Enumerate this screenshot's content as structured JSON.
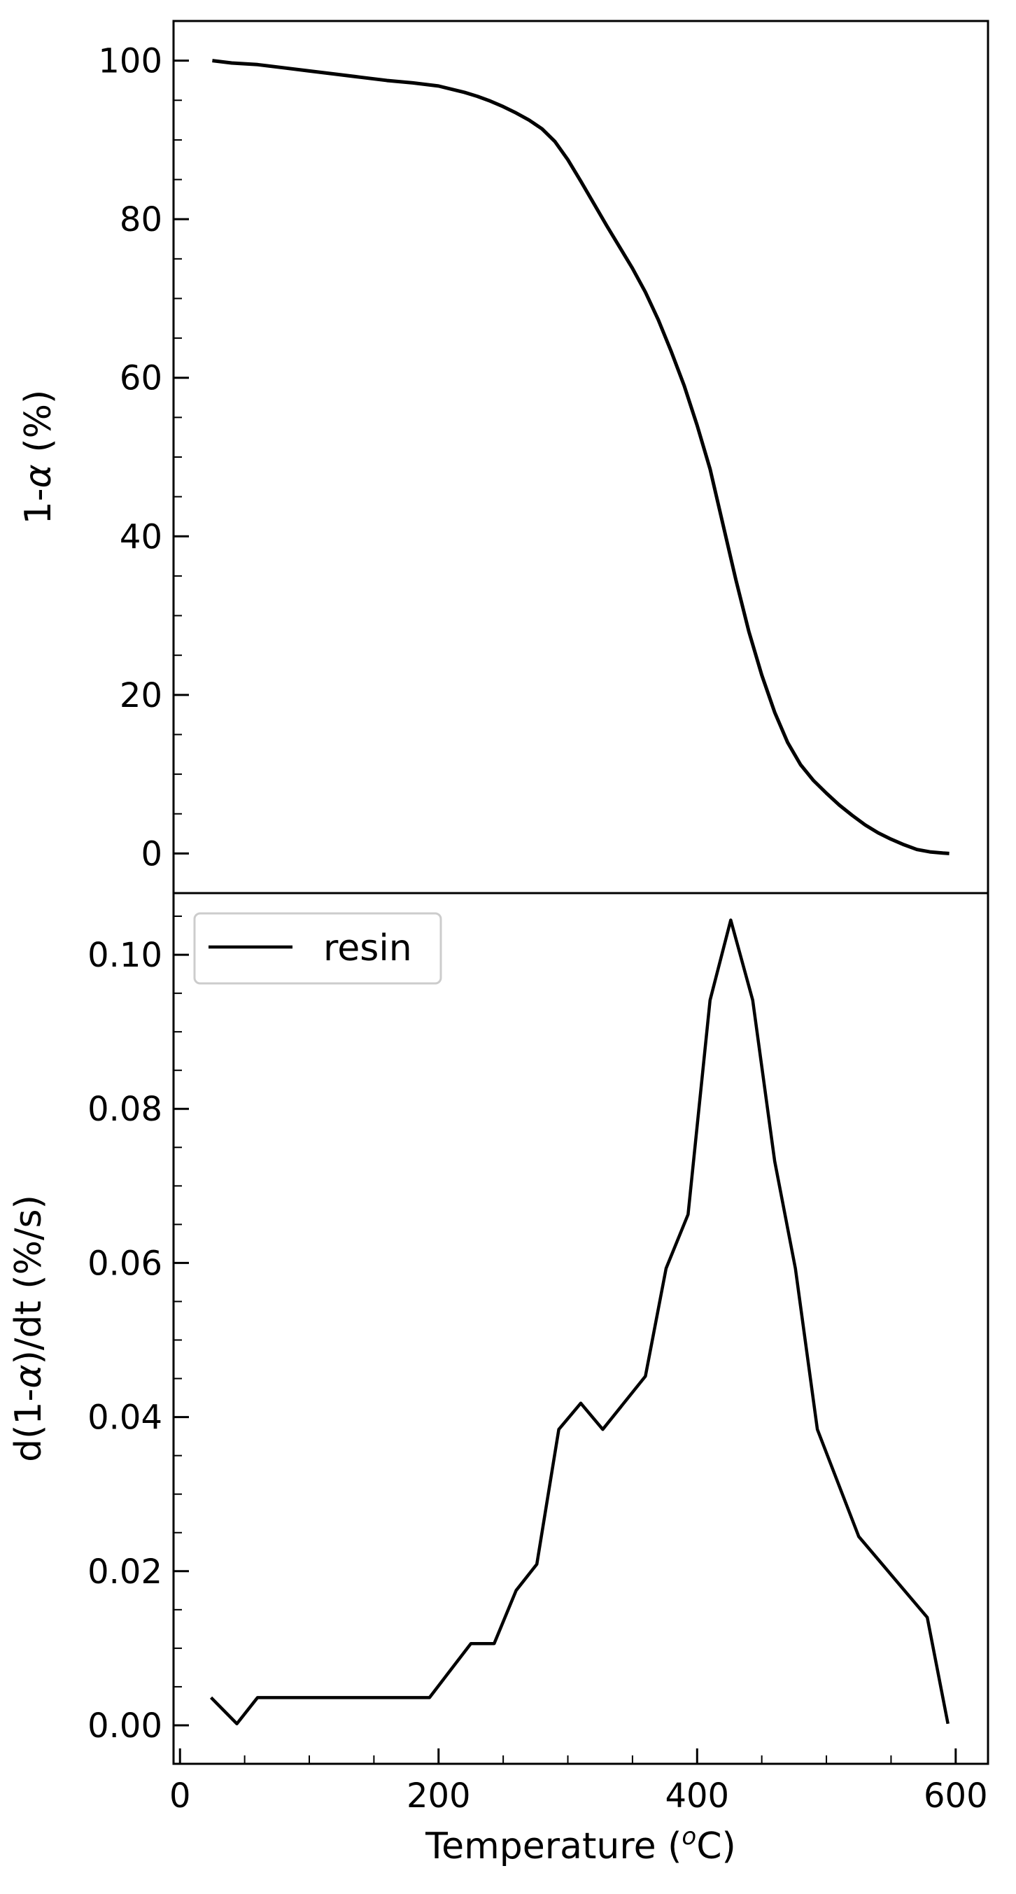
{
  "chart_data": [
    {
      "type": "line",
      "title": "",
      "xlabel": "",
      "ylabel": "1-α (%)",
      "ylabel_parts": {
        "prefix": "1-",
        "symbol": "α",
        "suffix": " (%)"
      },
      "xlim": [
        -5,
        625
      ],
      "ylim": [
        -5,
        105
      ],
      "sharex": true,
      "yticks": [
        0,
        20,
        40,
        60,
        80,
        100
      ],
      "ytick_labels": [
        "0",
        "20",
        "40",
        "60",
        "80",
        "100"
      ],
      "y_minor_step": 5,
      "grid": false,
      "series": [
        {
          "color": "#000000",
          "x": [
            25,
            40,
            60,
            80,
            100,
            120,
            140,
            160,
            180,
            200,
            210,
            220,
            230,
            240,
            250,
            260,
            270,
            280,
            290,
            300,
            310,
            320,
            330,
            340,
            350,
            360,
            370,
            380,
            390,
            400,
            410,
            420,
            430,
            440,
            450,
            460,
            470,
            480,
            490,
            500,
            510,
            520,
            530,
            540,
            550,
            560,
            570,
            580,
            590,
            595
          ],
          "y": [
            100,
            99.7,
            99.5,
            99.1,
            98.7,
            98.3,
            97.9,
            97.5,
            97.2,
            96.8,
            96.4,
            96.0,
            95.5,
            94.9,
            94.2,
            93.4,
            92.5,
            91.4,
            89.8,
            87.5,
            84.8,
            82.0,
            79.2,
            76.5,
            73.8,
            70.8,
            67.3,
            63.3,
            59.0,
            54.0,
            48.5,
            41.5,
            34.5,
            28.0,
            22.5,
            17.8,
            14.0,
            11.2,
            9.2,
            7.6,
            6.1,
            4.8,
            3.6,
            2.6,
            1.8,
            1.1,
            0.5,
            0.2,
            0.05,
            0
          ]
        }
      ]
    },
    {
      "type": "line",
      "title": "",
      "xlabel": "Temperature (oC)",
      "xlabel_parts": {
        "prefix": "Temperature (",
        "sup": "o",
        "suffix": "C)"
      },
      "ylabel": "d(1-α)/dt (%/s)",
      "ylabel_parts": {
        "prefix": "d(1-",
        "symbol": "α",
        "suffix": ")/dt (%/s)"
      },
      "xlim": [
        -5,
        625
      ],
      "ylim": [
        -0.005,
        0.108
      ],
      "xticks": [
        0,
        200,
        400,
        600
      ],
      "xtick_labels": [
        "0",
        "200",
        "400",
        "600"
      ],
      "x_minor_step": 50,
      "yticks": [
        0.0,
        0.02,
        0.04,
        0.06,
        0.08,
        0.1
      ],
      "ytick_labels": [
        "0.00",
        "0.02",
        "0.04",
        "0.06",
        "0.08",
        "0.10"
      ],
      "y_minor_step": 0.005,
      "grid": false,
      "legend_position": "top-left",
      "series": [
        {
          "name": "resin",
          "color": "#000000",
          "x": [
            24,
            44,
            60,
            193,
            225,
            243,
            260,
            276,
            293,
            310,
            327,
            360,
            376,
            393,
            410,
            426,
            443,
            460,
            476,
            493,
            525,
            578,
            594
          ],
          "y": [
            0.0036,
            0.0002,
            0.0036,
            0.0036,
            0.0106,
            0.0106,
            0.0175,
            0.0209,
            0.0384,
            0.0418,
            0.0384,
            0.0453,
            0.0593,
            0.0663,
            0.0941,
            0.1045,
            0.0941,
            0.0732,
            0.0593,
            0.0384,
            0.0245,
            0.014,
            0.0002
          ]
        }
      ]
    }
  ]
}
